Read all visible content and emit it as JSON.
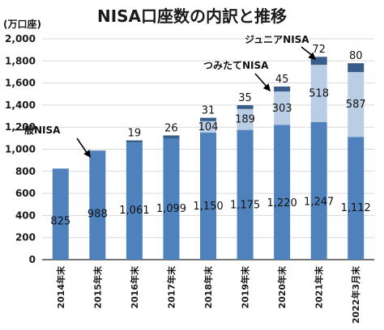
{
  "chart_data": {
    "type": "bar",
    "title": "NISA口座数の内訳と推移",
    "unit_label": "(万口座)",
    "ylim": [
      0,
      2000
    ],
    "yticks": [
      "0",
      "200",
      "400",
      "600",
      "800",
      "1,000",
      "1,200",
      "1,400",
      "1,600",
      "1,800",
      "2,000"
    ],
    "grid": true,
    "categories": [
      "2014年末",
      "2015年末",
      "2016年末",
      "2017年末",
      "2018年末",
      "2019年末",
      "2020年末",
      "2021年末",
      "2022年3月末"
    ],
    "series": [
      {
        "name": "一般NISA",
        "color": "#4f81bd",
        "values": [
          825,
          988,
          1061,
          1099,
          1150,
          1175,
          1220,
          1247,
          1112
        ],
        "labels": [
          "825",
          "988",
          "1,061",
          "1,099",
          "1,150",
          "1,175",
          "1,220",
          "1,247",
          "1,112"
        ]
      },
      {
        "name": "つみたてNISA",
        "color": "#b9cde5",
        "values": [
          0,
          0,
          0,
          0,
          104,
          189,
          303,
          518,
          587
        ],
        "labels": [
          "",
          "",
          "",
          "",
          "104",
          "189",
          "303",
          "518",
          "587"
        ]
      },
      {
        "name": "ジュニアNISA",
        "color": "#385d8a",
        "values": [
          0,
          0,
          19,
          26,
          31,
          35,
          45,
          72,
          80
        ],
        "labels": [
          "",
          "",
          "19",
          "26",
          "31",
          "35",
          "45",
          "72",
          "80"
        ]
      }
    ],
    "annotations": [
      {
        "text": "一般NISA",
        "series": 0
      },
      {
        "text": "つみたてNISA",
        "series": 1
      },
      {
        "text": "ジュニアNISA",
        "series": 2
      }
    ]
  }
}
